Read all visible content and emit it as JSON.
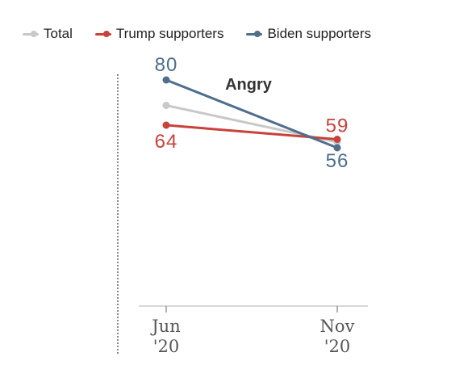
{
  "chart_data": {
    "type": "line",
    "title": "Angry",
    "x": [
      "Jun '20",
      "Nov '20"
    ],
    "x_ticks": [
      {
        "line1": "Jun",
        "line2": "'20"
      },
      {
        "line1": "Nov",
        "line2": "'20"
      }
    ],
    "series": [
      {
        "name": "Total",
        "values": [
          71,
          58
        ],
        "color": "#c8c8c8",
        "labels": [
          "",
          ""
        ]
      },
      {
        "name": "Trump supporters",
        "values": [
          64,
          59
        ],
        "color": "#c7423b",
        "labels": [
          "64",
          "59"
        ]
      },
      {
        "name": "Biden supporters",
        "values": [
          80,
          56
        ],
        "color": "#4e6e8c",
        "labels": [
          "80",
          "56"
        ]
      }
    ],
    "ylim": [
      0,
      100
    ],
    "legend_position": "top-left",
    "grid": false
  }
}
